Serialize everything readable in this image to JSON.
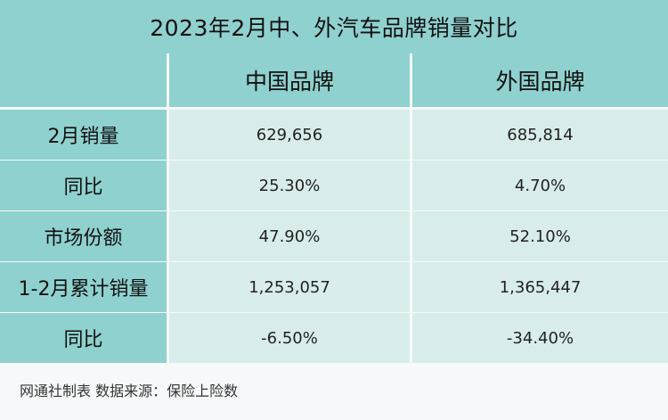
{
  "title": "2023年2月中、外汽车品牌销量对比",
  "columns": [
    "",
    "中国品牌",
    "外国品牌"
  ],
  "rows": [
    {
      "label": "2月销量",
      "china": "629,656",
      "foreign": "685,814"
    },
    {
      "label": "同比",
      "china": "25.30%",
      "foreign": "4.70%"
    },
    {
      "label": "市场份额",
      "china": "47.90%",
      "foreign": "52.10%"
    },
    {
      "label": "1-2月累计销量",
      "china": "1,253,057",
      "foreign": "1,365,447"
    },
    {
      "label": "同比",
      "china": "-6.50%",
      "foreign": "-34.40%"
    }
  ],
  "footer": "网通社制表 数据来源：保险上险数",
  "colors": {
    "header_bg": "#8fd1cf",
    "cell_bg": "#d8ecec",
    "page_bg": "#f6f9f9"
  }
}
